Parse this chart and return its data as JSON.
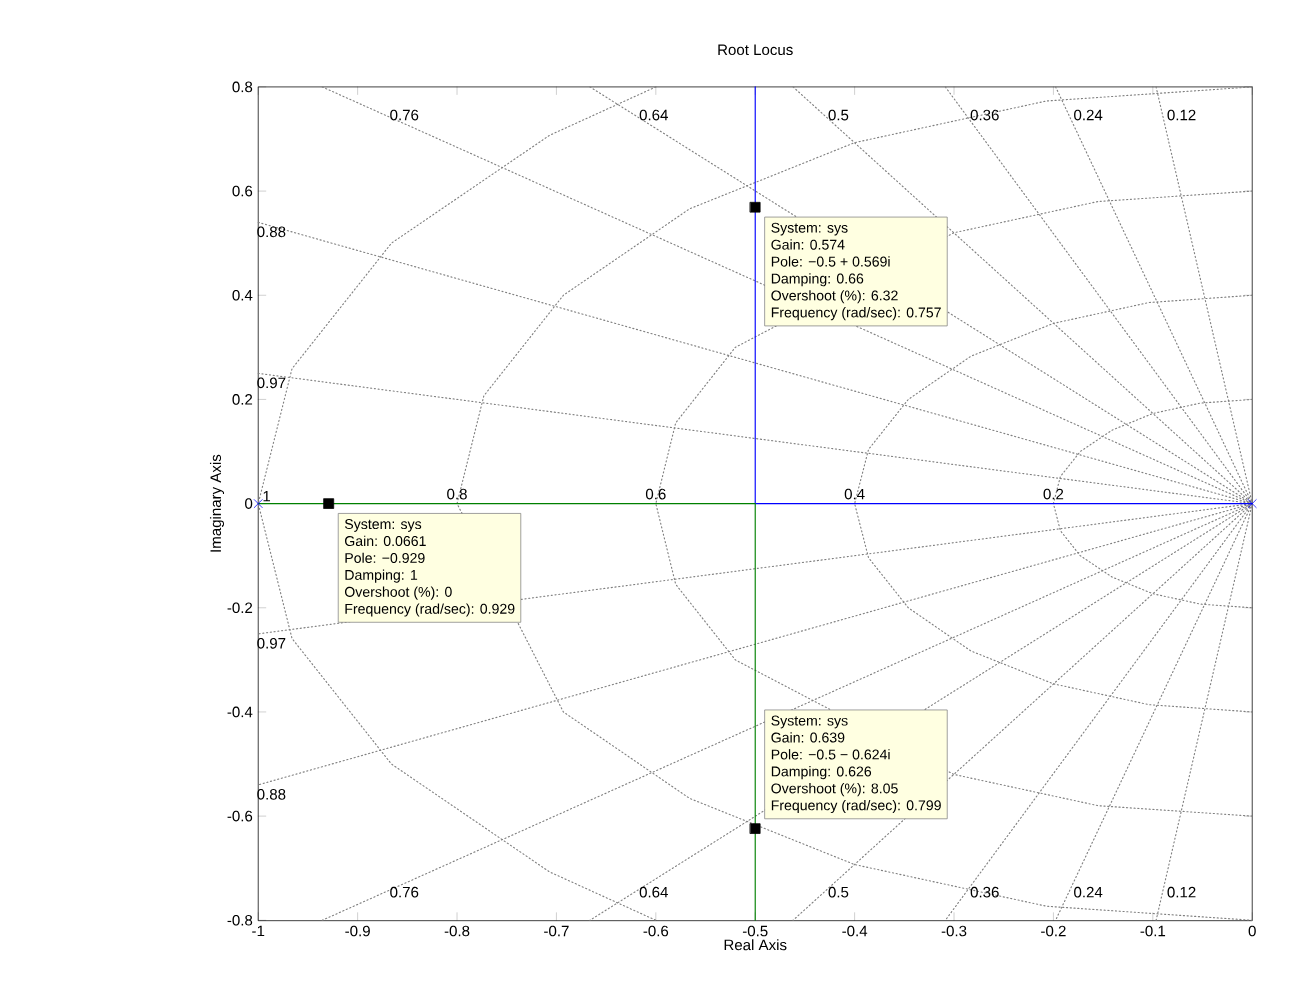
{
  "chart_data": {
    "type": "line",
    "title": "Root Locus",
    "xlabel": "Real Axis",
    "ylabel": "Imaginary Axis",
    "xlim": [
      -1,
      0
    ],
    "ylim": [
      -0.8,
      0.8
    ],
    "xticks": [
      -1,
      -0.9,
      -0.8,
      -0.7,
      -0.6,
      -0.5,
      -0.4,
      -0.3,
      -0.2,
      -0.1,
      0
    ],
    "yticks": [
      -0.8,
      -0.6,
      -0.4,
      -0.2,
      0,
      0.2,
      0.4,
      0.6,
      0.8
    ],
    "series": [
      {
        "color": "#808080",
        "line_style": "dotted",
        "x": [
          -0.0967,
          0,
          -0.0967
        ],
        "values": [
          0.8,
          0,
          -0.8
        ]
      },
      {
        "color": "#808080",
        "line_style": "dotted",
        "x": [
          -0.1978,
          0,
          -0.1978
        ],
        "values": [
          0.8,
          0,
          -0.8
        ]
      },
      {
        "color": "#808080",
        "line_style": "dotted",
        "x": [
          -0.3087,
          0,
          -0.3087
        ],
        "values": [
          0.8,
          0,
          -0.8
        ]
      },
      {
        "color": "#808080",
        "line_style": "dotted",
        "x": [
          -0.4619,
          0,
          -0.4619
        ],
        "values": [
          0.8,
          0,
          -0.8
        ]
      },
      {
        "color": "#808080",
        "line_style": "dotted",
        "x": [
          -0.6663,
          0,
          -0.6663
        ],
        "values": [
          0.8,
          0,
          -0.8
        ]
      },
      {
        "color": "#808080",
        "line_style": "dotted",
        "x": [
          -0.9356,
          0,
          -0.9356
        ],
        "values": [
          0.8,
          0,
          -0.8
        ]
      },
      {
        "color": "#808080",
        "line_style": "dotted",
        "x": [
          -1,
          0,
          -1
        ],
        "values": [
          0.54,
          0,
          -0.54
        ]
      },
      {
        "color": "#808080",
        "line_style": "dotted",
        "x": [
          -1,
          0,
          -1
        ],
        "values": [
          0.25,
          0,
          -0.25
        ]
      },
      {
        "color": "#808080",
        "line_style": "dotted",
        "x": [
          0,
          -0.052,
          -0.1,
          -0.141,
          -0.173,
          -0.193,
          -0.2,
          -0.193,
          -0.173,
          -0.141,
          -0.1,
          -0.052,
          0
        ],
        "values": [
          0.2,
          0.193,
          0.173,
          0.141,
          0.1,
          0.052,
          0,
          -0.052,
          -0.1,
          -0.141,
          -0.173,
          -0.193,
          -0.2
        ]
      },
      {
        "color": "#808080",
        "line_style": "dotted",
        "x": [
          0,
          -0.104,
          -0.2,
          -0.283,
          -0.346,
          -0.386,
          -0.4,
          -0.386,
          -0.346,
          -0.283,
          -0.2,
          -0.104,
          0
        ],
        "values": [
          0.4,
          0.386,
          0.346,
          0.283,
          0.2,
          0.104,
          0,
          -0.104,
          -0.2,
          -0.283,
          -0.346,
          -0.386,
          -0.4
        ]
      },
      {
        "color": "#808080",
        "line_style": "dotted",
        "x": [
          0,
          -0.155,
          -0.3,
          -0.424,
          -0.52,
          -0.58,
          -0.6,
          -0.58,
          -0.52,
          -0.424,
          -0.3,
          -0.155,
          0
        ],
        "values": [
          0.6,
          0.58,
          0.52,
          null,
          0.3,
          0.155,
          0,
          -0.155,
          -0.3,
          null,
          -0.52,
          -0.58,
          -0.6
        ]
      },
      {
        "color": "#808080",
        "line_style": "dotted",
        "x": [
          0,
          -0.207,
          -0.4,
          -0.566,
          -0.693,
          -0.773,
          -0.8,
          -0.773,
          -0.693,
          -0.566,
          -0.4,
          -0.207,
          0
        ],
        "values": [
          0.8,
          0.773,
          0.693,
          0.566,
          0.4,
          0.207,
          0,
          null,
          -0.4,
          -0.566,
          -0.693,
          -0.773,
          -0.8
        ]
      },
      {
        "color": "#808080",
        "line_style": "dotted",
        "x": [
          -0.6,
          -0.707,
          -0.866,
          -0.966,
          -1,
          -0.966,
          -0.866,
          -0.707,
          -0.6
        ],
        "values": [
          0.8,
          0.707,
          0.5,
          0.259,
          0,
          -0.259,
          -0.5,
          -0.707,
          -0.8
        ]
      },
      {
        "color": "#0000ff",
        "line_style": "solid",
        "x": [
          0,
          -0.5,
          -0.5
        ],
        "values": [
          0,
          0,
          0.8
        ]
      },
      {
        "color": "#008000",
        "line_style": "solid",
        "x": [
          -1,
          -0.5,
          -0.5
        ],
        "values": [
          0,
          0,
          -0.8
        ]
      },
      {
        "type": "scatter",
        "color": "#0000ff",
        "marker": "cross",
        "x": [
          -1,
          0
        ],
        "values": [
          0,
          0
        ]
      },
      {
        "type": "scatter",
        "color": "#000000",
        "marker": "square",
        "x": [
          -0.929,
          -0.5,
          -0.5
        ],
        "values": [
          0,
          0.569,
          -0.624
        ]
      }
    ],
    "annotations": [
      "System: sys",
      "Gain: 0.639",
      "Pole: −0.5 − 0.624i",
      "Damping: 0.626",
      "Overshoot (%): 8.05",
      {
        "text": "Frequency (rad/sec): 0.799",
        "x": -0.5,
        "y": -0.624
      },
      {
        "text": "System: sys",
        "x": -0.929,
        "y": 0
      },
      "Gain: 0.0661",
      "Pole: −0.929",
      "Damping: 1",
      "Overshoot (%): 0",
      "Frequency (rad/sec): 0.929",
      {
        "text": "System: sys",
        "x": -0.5,
        "y": 0.569
      },
      "Gain: 0.574",
      "Pole: −0.5 + 0.569i",
      "Damping: 0.66",
      "Overshoot (%): 6.32",
      "Frequency (rad/sec): 0.757",
      {
        "text": "0.76",
        "x": -0.872,
        "y": 0.746
      },
      {
        "text": "0.64",
        "x": -0.621,
        "y": 0.746
      },
      {
        "text": "0.5",
        "x": -0.431,
        "y": 0.746
      },
      {
        "text": "0.36",
        "x": -0.288,
        "y": 0.746
      },
      {
        "text": "0.24",
        "x": -0.184,
        "y": 0.746
      },
      {
        "text": "0.12",
        "x": -0.09,
        "y": 0.746
      },
      {
        "text": "0.76",
        "x": -0.872,
        "y": -0.746
      },
      {
        "text": "0.64",
        "x": -0.621,
        "y": -0.746
      },
      {
        "text": "0.5",
        "x": -0.431,
        "y": -0.746
      },
      {
        "text": "0.36",
        "x": -0.288,
        "y": -0.746
      },
      {
        "text": "0.24",
        "x": -0.184,
        "y": -0.746
      },
      {
        "text": "0.12",
        "x": -0.09,
        "y": -0.746
      },
      {
        "text": "0.88",
        "x": -1,
        "y": 0.54
      },
      {
        "text": "0.97",
        "x": -1,
        "y": 0.25
      },
      {
        "text": "0.97",
        "x": -1,
        "y": -0.25
      },
      {
        "text": "0.88",
        "x": -1,
        "y": -0.54
      },
      {
        "text": "1",
        "x": -1,
        "y": 0
      },
      {
        "text": "0.8",
        "x": -0.8,
        "y": 0
      },
      {
        "text": "0.6",
        "x": -0.6,
        "y": 0
      },
      {
        "text": "0.4",
        "x": -0.4,
        "y": 0
      },
      {
        "text": "0.2",
        "x": -0.2,
        "y": 0
      }
    ]
  }
}
